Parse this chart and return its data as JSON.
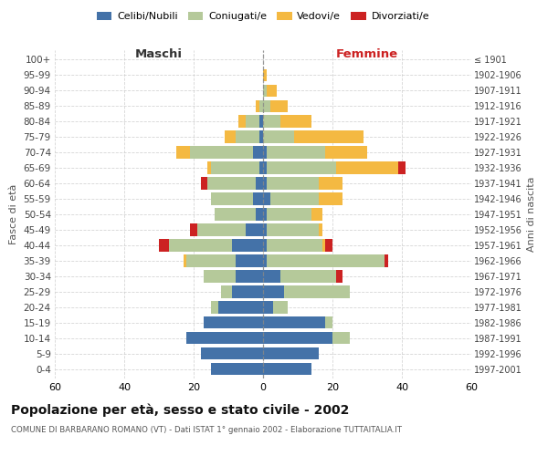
{
  "age_groups": [
    "0-4",
    "5-9",
    "10-14",
    "15-19",
    "20-24",
    "25-29",
    "30-34",
    "35-39",
    "40-44",
    "45-49",
    "50-54",
    "55-59",
    "60-64",
    "65-69",
    "70-74",
    "75-79",
    "80-84",
    "85-89",
    "90-94",
    "95-99",
    "100+"
  ],
  "birth_years": [
    "1997-2001",
    "1992-1996",
    "1987-1991",
    "1982-1986",
    "1977-1981",
    "1972-1976",
    "1967-1971",
    "1962-1966",
    "1957-1961",
    "1952-1956",
    "1947-1951",
    "1942-1946",
    "1937-1941",
    "1932-1936",
    "1927-1931",
    "1922-1926",
    "1917-1921",
    "1912-1916",
    "1907-1911",
    "1902-1906",
    "≤ 1901"
  ],
  "maschi": {
    "celibi": [
      15,
      18,
      22,
      17,
      13,
      9,
      8,
      8,
      9,
      5,
      2,
      3,
      2,
      1,
      3,
      1,
      1,
      0,
      0,
      0,
      0
    ],
    "coniugati": [
      0,
      0,
      0,
      0,
      2,
      3,
      9,
      14,
      18,
      14,
      12,
      12,
      14,
      14,
      18,
      7,
      4,
      1,
      0,
      0,
      0
    ],
    "vedovi": [
      0,
      0,
      0,
      0,
      0,
      0,
      0,
      1,
      0,
      0,
      0,
      0,
      0,
      1,
      4,
      3,
      2,
      1,
      0,
      0,
      0
    ],
    "divorziati": [
      0,
      0,
      0,
      0,
      0,
      0,
      0,
      0,
      3,
      2,
      0,
      0,
      2,
      0,
      0,
      0,
      0,
      0,
      0,
      0,
      0
    ]
  },
  "femmine": {
    "nubili": [
      14,
      16,
      20,
      18,
      3,
      6,
      5,
      1,
      1,
      1,
      1,
      2,
      1,
      1,
      1,
      0,
      0,
      0,
      0,
      0,
      0
    ],
    "coniugate": [
      0,
      0,
      5,
      2,
      4,
      19,
      16,
      34,
      16,
      15,
      13,
      14,
      15,
      20,
      17,
      9,
      5,
      2,
      1,
      0,
      0
    ],
    "vedove": [
      0,
      0,
      0,
      0,
      0,
      0,
      0,
      0,
      1,
      1,
      3,
      7,
      7,
      18,
      12,
      20,
      9,
      5,
      3,
      1,
      0
    ],
    "divorziate": [
      0,
      0,
      0,
      0,
      0,
      0,
      2,
      1,
      2,
      0,
      0,
      0,
      0,
      2,
      0,
      0,
      0,
      0,
      0,
      0,
      0
    ]
  },
  "colors": {
    "celibi": "#4472a8",
    "coniugati": "#b5c99a",
    "vedovi": "#f4b942",
    "divorziati": "#cc2222"
  },
  "xlim": 60,
  "title": "Popolazione per età, sesso e stato civile - 2002",
  "subtitle": "COMUNE DI BARBARANO ROMANO (VT) - Dati ISTAT 1° gennaio 2002 - Elaborazione TUTTAITALIA.IT",
  "ylabel": "Fasce di età",
  "ylabel_right": "Anni di nascita"
}
